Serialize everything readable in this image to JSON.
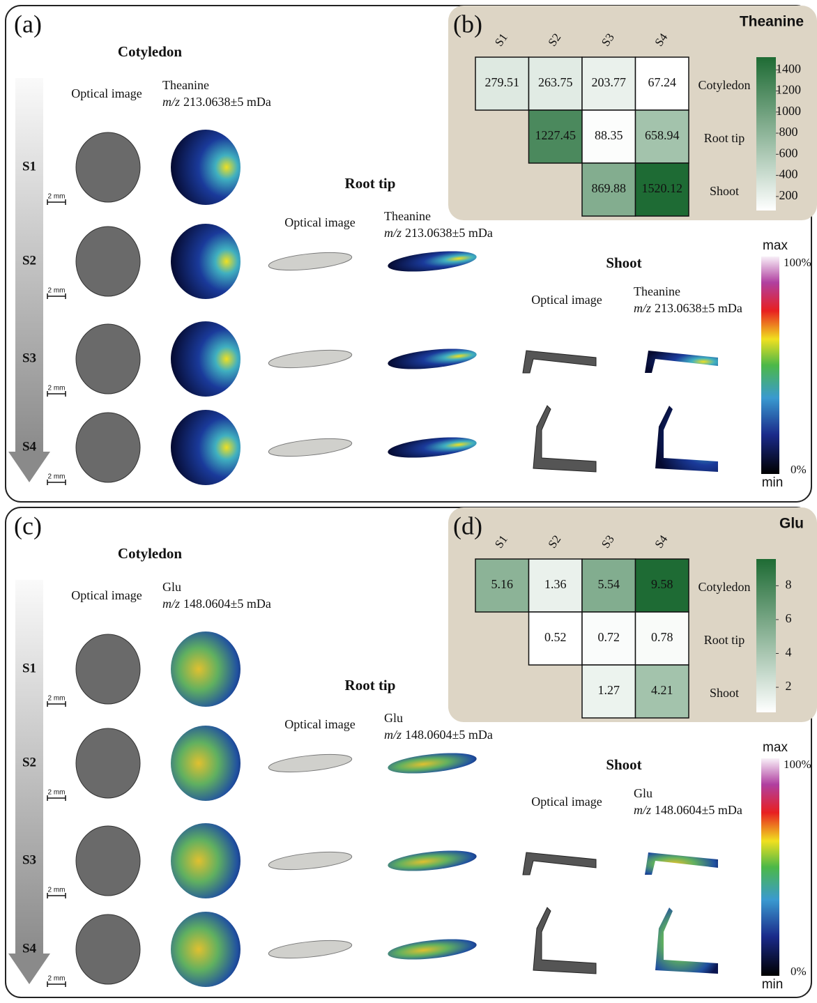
{
  "panels": [
    {
      "label": "(a)",
      "stages": [
        "S1",
        "S2",
        "S3",
        "S4"
      ],
      "scale_bar": "2 mm",
      "sections": [
        {
          "title": "Cotyledon",
          "optical_label": "Optical image",
          "ion": "Theanine",
          "mz_italic": "m/z",
          "mz": "213.0638±5 mDa"
        },
        {
          "title": "Root tip",
          "optical_label": "Optical image",
          "ion": "Theanine",
          "mz_italic": "m/z",
          "mz": "213.0638±5 mDa"
        },
        {
          "title": "Shoot",
          "optical_label": "Optical image",
          "ion": "Theanine",
          "mz_italic": "m/z",
          "mz": "213.0638±5 mDa"
        }
      ],
      "colorbar": {
        "top": "max",
        "high": "100%",
        "low": "0%",
        "bottom": "min"
      }
    },
    {
      "label": "(c)",
      "stages": [
        "S1",
        "S2",
        "S3",
        "S4"
      ],
      "scale_bar": "2 mm",
      "sections": [
        {
          "title": "Cotyledon",
          "optical_label": "Optical image",
          "ion": "Glu",
          "mz_italic": "m/z",
          "mz": "148.0604±5 mDa"
        },
        {
          "title": "Root tip",
          "optical_label": "Optical image",
          "ion": "Glu",
          "mz_italic": "m/z",
          "mz": "148.0604±5 mDa"
        },
        {
          "title": "Shoot",
          "optical_label": "Optical image",
          "ion": "Glu",
          "mz_italic": "m/z",
          "mz": "148.0604±5 mDa"
        }
      ],
      "colorbar": {
        "top": "max",
        "high": "100%",
        "low": "0%",
        "bottom": "min"
      }
    }
  ],
  "heatmaps": [
    {
      "label": "(b)",
      "title": "Theanine",
      "columns": [
        "S1",
        "S2",
        "S3",
        "S4"
      ],
      "rows": [
        "Cotyledon",
        "Root tip",
        "Shoot"
      ],
      "values": [
        [
          279.51,
          263.75,
          203.77,
          67.24
        ],
        [
          null,
          1227.45,
          88.35,
          658.94
        ],
        [
          null,
          null,
          869.88,
          1520.12
        ]
      ],
      "clim": [
        67.24,
        1520.12
      ],
      "ticks": [
        200,
        400,
        600,
        800,
        1000,
        1200,
        1400
      ]
    },
    {
      "label": "(d)",
      "title": "Glu",
      "columns": [
        "S1",
        "S2",
        "S3",
        "S4"
      ],
      "rows": [
        "Cotyledon",
        "Root tip",
        "Shoot"
      ],
      "values": [
        [
          5.16,
          1.36,
          5.54,
          9.58
        ],
        [
          null,
          0.52,
          0.72,
          0.78
        ],
        [
          null,
          null,
          1.27,
          4.21
        ]
      ],
      "clim": [
        0.52,
        9.58
      ],
      "ticks": [
        2,
        4,
        6,
        8
      ]
    }
  ]
}
